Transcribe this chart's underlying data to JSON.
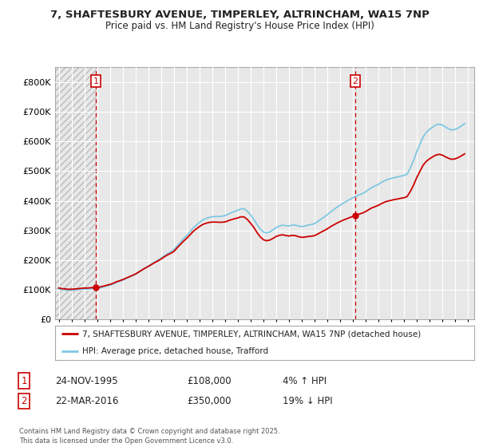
{
  "title_line1": "7, SHAFTESBURY AVENUE, TIMPERLEY, ALTRINCHAM, WA15 7NP",
  "title_line2": "Price paid vs. HM Land Registry's House Price Index (HPI)",
  "background_color": "#ffffff",
  "plot_bg_color": "#e8e8e8",
  "grid_color": "#ffffff",
  "hpi_color": "#7ec8e3",
  "price_color": "#cc0000",
  "vline_color": "#cc0000",
  "ylim": [
    0,
    850000
  ],
  "yticks": [
    0,
    100000,
    200000,
    300000,
    400000,
    500000,
    600000,
    700000,
    800000
  ],
  "ytick_labels": [
    "£0",
    "£100K",
    "£200K",
    "£300K",
    "£400K",
    "£500K",
    "£600K",
    "£700K",
    "£800K"
  ],
  "xlim_start": 1992.7,
  "xlim_end": 2025.5,
  "xticks": [
    1993,
    1994,
    1995,
    1996,
    1997,
    1998,
    1999,
    2000,
    2001,
    2002,
    2003,
    2004,
    2005,
    2006,
    2007,
    2008,
    2009,
    2010,
    2011,
    2012,
    2013,
    2014,
    2015,
    2016,
    2017,
    2018,
    2019,
    2020,
    2021,
    2022,
    2023,
    2024,
    2025
  ],
  "sale1_x": 1995.9,
  "sale1_y": 108000,
  "sale1_label": "1",
  "sale1_date": "24-NOV-1995",
  "sale1_price": "£108,000",
  "sale1_hpi": "4% ↑ HPI",
  "sale2_x": 2016.2,
  "sale2_y": 350000,
  "sale2_label": "2",
  "sale2_date": "22-MAR-2016",
  "sale2_price": "£350,000",
  "sale2_hpi": "19% ↓ HPI",
  "legend_line1": "7, SHAFTESBURY AVENUE, TIMPERLEY, ALTRINCHAM, WA15 7NP (detached house)",
  "legend_line2": "HPI: Average price, detached house, Trafford",
  "footer": "Contains HM Land Registry data © Crown copyright and database right 2025.\nThis data is licensed under the Open Government Licence v3.0.",
  "hpi_data_x": [
    1993.0,
    1993.25,
    1993.5,
    1993.75,
    1994.0,
    1994.25,
    1994.5,
    1994.75,
    1995.0,
    1995.25,
    1995.5,
    1995.75,
    1996.0,
    1996.25,
    1996.5,
    1996.75,
    1997.0,
    1997.25,
    1997.5,
    1997.75,
    1998.0,
    1998.25,
    1998.5,
    1998.75,
    1999.0,
    1999.25,
    1999.5,
    1999.75,
    2000.0,
    2000.25,
    2000.5,
    2000.75,
    2001.0,
    2001.25,
    2001.5,
    2001.75,
    2002.0,
    2002.25,
    2002.5,
    2002.75,
    2003.0,
    2003.25,
    2003.5,
    2003.75,
    2004.0,
    2004.25,
    2004.5,
    2004.75,
    2005.0,
    2005.25,
    2005.5,
    2005.75,
    2006.0,
    2006.25,
    2006.5,
    2006.75,
    2007.0,
    2007.25,
    2007.5,
    2007.75,
    2008.0,
    2008.25,
    2008.5,
    2008.75,
    2009.0,
    2009.25,
    2009.5,
    2009.75,
    2010.0,
    2010.25,
    2010.5,
    2010.75,
    2011.0,
    2011.25,
    2011.5,
    2011.75,
    2012.0,
    2012.25,
    2012.5,
    2012.75,
    2013.0,
    2013.25,
    2013.5,
    2013.75,
    2014.0,
    2014.25,
    2014.5,
    2014.75,
    2015.0,
    2015.25,
    2015.5,
    2015.75,
    2016.0,
    2016.25,
    2016.5,
    2016.75,
    2017.0,
    2017.25,
    2017.5,
    2017.75,
    2018.0,
    2018.25,
    2018.5,
    2018.75,
    2019.0,
    2019.25,
    2019.5,
    2019.75,
    2020.0,
    2020.25,
    2020.5,
    2020.75,
    2021.0,
    2021.25,
    2021.5,
    2021.75,
    2022.0,
    2022.25,
    2022.5,
    2022.75,
    2023.0,
    2023.25,
    2023.5,
    2023.75,
    2024.0,
    2024.25,
    2024.5,
    2024.75
  ],
  "hpi_data_y": [
    103000,
    101000,
    100000,
    99000,
    99000,
    100000,
    101000,
    102000,
    103000,
    103000,
    104000,
    104000,
    105000,
    107000,
    110000,
    113000,
    116000,
    120000,
    125000,
    129000,
    133000,
    138000,
    143000,
    148000,
    153000,
    160000,
    167000,
    174000,
    180000,
    187000,
    194000,
    200000,
    207000,
    215000,
    222000,
    228000,
    235000,
    248000,
    260000,
    272000,
    283000,
    295000,
    308000,
    318000,
    327000,
    335000,
    340000,
    344000,
    346000,
    347000,
    347000,
    348000,
    350000,
    355000,
    360000,
    364000,
    368000,
    373000,
    373000,
    365000,
    352000,
    338000,
    320000,
    305000,
    295000,
    292000,
    295000,
    302000,
    310000,
    315000,
    318000,
    316000,
    315000,
    318000,
    318000,
    315000,
    313000,
    315000,
    318000,
    320000,
    323000,
    330000,
    338000,
    345000,
    353000,
    362000,
    370000,
    378000,
    385000,
    392000,
    398000,
    404000,
    410000,
    415000,
    420000,
    424000,
    430000,
    438000,
    445000,
    450000,
    455000,
    462000,
    468000,
    472000,
    475000,
    478000,
    480000,
    483000,
    485000,
    490000,
    510000,
    535000,
    565000,
    590000,
    615000,
    630000,
    640000,
    648000,
    655000,
    658000,
    655000,
    648000,
    642000,
    638000,
    640000,
    645000,
    652000,
    660000
  ]
}
